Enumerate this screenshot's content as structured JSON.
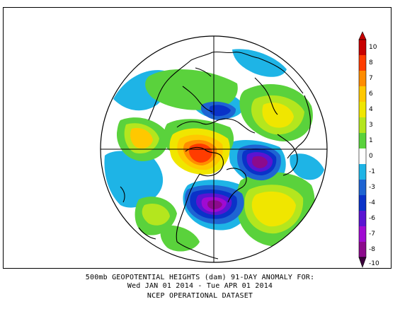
{
  "caption": {
    "line1": "500mb GEOPOTENTIAL HEIGHTS (dam)   91-DAY ANOMALY FOR:",
    "line2": "Wed JAN 01 2014 - Tue APR 01 2014",
    "line3": "NCEP OPERATIONAL DATASET"
  },
  "colorbar": {
    "labels": [
      "10",
      "8",
      "7",
      "6",
      "4",
      "3",
      "1",
      "0",
      "-1",
      "-3",
      "-4",
      "-6",
      "-7",
      "-8",
      "-10"
    ],
    "colors": [
      "#c80000",
      "#ff3c00",
      "#ff8c00",
      "#ffc800",
      "#f0e600",
      "#b4e61e",
      "#5ad23c",
      "#ffffff",
      "#1eb4e6",
      "#1e64d2",
      "#0a32c8",
      "#5a14d2",
      "#a00ad2",
      "#8c0a8c",
      "#3c003c"
    ]
  },
  "map": {
    "projection": "north-polar-stereographic",
    "land_outline_color": "#000000"
  }
}
